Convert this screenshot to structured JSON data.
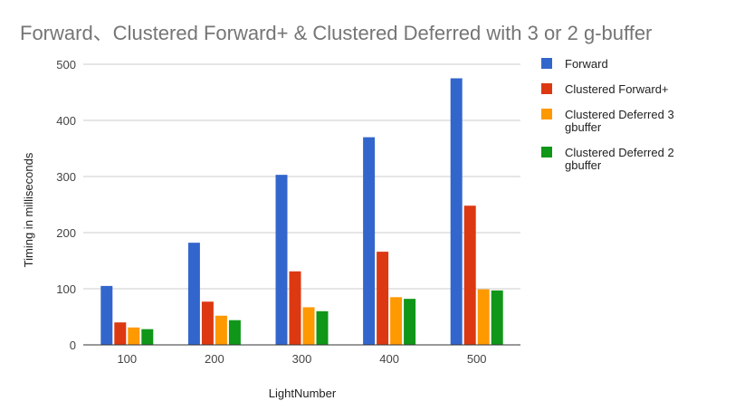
{
  "chart_data": {
    "type": "bar",
    "title": "Forward、Clustered Forward+ & Clustered Deferred with 3 or 2 g-buffer",
    "xlabel": "LightNumber",
    "ylabel": "Timing in milliseconds",
    "categories": [
      "100",
      "200",
      "300",
      "400",
      "500"
    ],
    "ylim": [
      0,
      500
    ],
    "yticks": [
      "0",
      "100",
      "200",
      "300",
      "400",
      "500"
    ],
    "grid": true,
    "legend_position": "right",
    "series": [
      {
        "name": "Forward",
        "color": "#3366cc",
        "values": [
          105,
          182,
          303,
          370,
          475
        ]
      },
      {
        "name": "Clustered Forward+",
        "color": "#dc3912",
        "values": [
          40,
          77,
          131,
          166,
          248
        ]
      },
      {
        "name": "Clustered Deferred 3 gbuffer",
        "name_lines": [
          "Clustered Deferred 3",
          "gbuffer"
        ],
        "color": "#ff9900",
        "values": [
          31,
          52,
          67,
          85,
          99
        ]
      },
      {
        "name": "Clustered Deferred 2 gbuffer",
        "name_lines": [
          "Clustered Deferred 2",
          "gbuffer"
        ],
        "color": "#109618",
        "values": [
          28,
          44,
          60,
          82,
          97
        ]
      }
    ]
  }
}
